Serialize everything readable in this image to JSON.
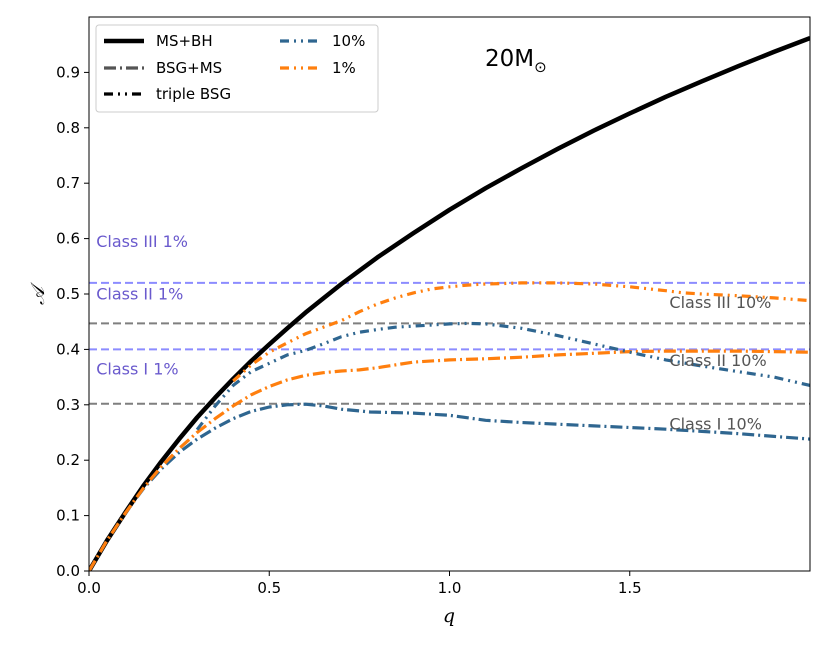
{
  "chart_data": {
    "type": "line",
    "title": "20M",
    "title_subscript": "⊙",
    "xlabel": "q",
    "ylabel": "𝒜",
    "xlim": [
      0,
      2
    ],
    "ylim": [
      0,
      1.0
    ],
    "xticks": [
      0.0,
      0.5,
      1.0,
      1.5
    ],
    "xtick_labels": [
      "0.0",
      "0.5",
      "1.0",
      "1.5"
    ],
    "yticks": [
      0.0,
      0.1,
      0.2,
      0.3,
      0.4,
      0.5,
      0.6,
      0.7,
      0.8,
      0.9
    ],
    "ytick_labels": [
      "0.0",
      "0.1",
      "0.2",
      "0.3",
      "0.4",
      "0.5",
      "0.6",
      "0.7",
      "0.8",
      "0.9"
    ],
    "colors": {
      "ms_bh": "#000000",
      "blue": "#2f6690",
      "orange": "#ff7f0e",
      "gray": "#7f7f7f",
      "purple_line": "#8c8cff",
      "purple_text": "#6a5acd",
      "gray_text": "#555555"
    },
    "legend": [
      {
        "label": "MS+BH",
        "style": "solid",
        "color": "#000000"
      },
      {
        "label": "BSG+MS",
        "style": "dashdot",
        "color": "#555555"
      },
      {
        "label": "triple BSG",
        "style": "dotted-dash",
        "color": "#000000"
      },
      {
        "label": "10%",
        "style": "dotted-dash",
        "color": "#2f6690"
      },
      {
        "label": "1%",
        "style": "dotted-dash",
        "color": "#ff7f0e"
      }
    ],
    "hlines": [
      {
        "y": 0.302,
        "color": "#7f7f7f",
        "label": "Class I 10%"
      },
      {
        "y": 0.447,
        "color": "#7f7f7f",
        "label": "Class II 10%"
      },
      {
        "y": 0.52,
        "color": "#8c8cff",
        "label": "Class III 1%"
      },
      {
        "y": 0.4,
        "color": "#8c8cff",
        "label": "Class I 1%"
      }
    ],
    "annotations": [
      {
        "text": "Class III 1%",
        "x": 0.02,
        "y": 0.585,
        "color": "#6a5acd"
      },
      {
        "text": "Class II 1%",
        "x": 0.02,
        "y": 0.49,
        "color": "#6a5acd"
      },
      {
        "text": "Class I 1%",
        "x": 0.02,
        "y": 0.355,
        "color": "#6a5acd"
      },
      {
        "text": "Class III 10%",
        "x": 1.61,
        "y": 0.475,
        "color": "#555555"
      },
      {
        "text": "Class II 10%",
        "x": 1.61,
        "y": 0.37,
        "color": "#555555"
      },
      {
        "text": "Class I 10%",
        "x": 1.61,
        "y": 0.255,
        "color": "#555555"
      }
    ],
    "series": [
      {
        "name": "MS+BH",
        "style": "solid",
        "color": "#000000",
        "x": [
          0,
          0.05,
          0.1,
          0.15,
          0.2,
          0.25,
          0.3,
          0.35,
          0.4,
          0.45,
          0.5,
          0.55,
          0.6,
          0.65,
          0.7,
          0.75,
          0.8,
          0.9,
          1.0,
          1.1,
          1.2,
          1.3,
          1.4,
          1.5,
          1.6,
          1.7,
          1.8,
          1.9,
          2.0
        ],
        "y": [
          0,
          0.055,
          0.105,
          0.153,
          0.197,
          0.238,
          0.277,
          0.313,
          0.347,
          0.379,
          0.409,
          0.438,
          0.466,
          0.492,
          0.518,
          0.542,
          0.566,
          0.61,
          0.652,
          0.691,
          0.727,
          0.762,
          0.795,
          0.826,
          0.856,
          0.884,
          0.911,
          0.937,
          0.962
        ]
      },
      {
        "name": "BSG+MS 10%",
        "style": "dashdot",
        "color": "#2f6690",
        "x": [
          0,
          0.05,
          0.1,
          0.15,
          0.2,
          0.25,
          0.3,
          0.35,
          0.4,
          0.45,
          0.5,
          0.55,
          0.6,
          0.65,
          0.7,
          0.75,
          0.78,
          0.9,
          1.0,
          1.1,
          1.2,
          1.3,
          1.4,
          1.5,
          1.6,
          1.7,
          1.8,
          1.9,
          2.0
        ],
        "y": [
          0,
          0.055,
          0.104,
          0.148,
          0.184,
          0.214,
          0.238,
          0.258,
          0.275,
          0.288,
          0.296,
          0.3,
          0.301,
          0.298,
          0.292,
          0.289,
          0.287,
          0.285,
          0.281,
          0.272,
          0.268,
          0.265,
          0.262,
          0.259,
          0.256,
          0.252,
          0.248,
          0.243,
          0.238
        ]
      },
      {
        "name": "BSG+MS 1%",
        "style": "dashdot",
        "color": "#ff7f0e",
        "x": [
          0,
          0.05,
          0.1,
          0.15,
          0.2,
          0.25,
          0.3,
          0.35,
          0.4,
          0.45,
          0.5,
          0.55,
          0.6,
          0.65,
          0.7,
          0.75,
          0.8,
          0.9,
          1.0,
          1.1,
          1.2,
          1.3,
          1.4,
          1.5,
          1.6,
          1.7,
          1.8,
          1.9,
          2.0
        ],
        "y": [
          0,
          0.055,
          0.104,
          0.149,
          0.188,
          0.221,
          0.25,
          0.275,
          0.298,
          0.318,
          0.333,
          0.345,
          0.353,
          0.358,
          0.361,
          0.363,
          0.367,
          0.377,
          0.381,
          0.383,
          0.386,
          0.39,
          0.393,
          0.396,
          0.397,
          0.397,
          0.397,
          0.396,
          0.395
        ]
      },
      {
        "name": "triple BSG 10%",
        "style": "dotted-dash",
        "color": "#2f6690",
        "x": [
          0.3,
          0.35,
          0.4,
          0.45,
          0.5,
          0.55,
          0.6,
          0.65,
          0.7,
          0.75,
          0.8,
          0.85,
          0.9,
          1.0,
          1.05,
          1.1,
          1.2,
          1.3,
          1.4,
          1.5,
          1.6,
          1.7,
          1.8,
          1.9,
          2.0
        ],
        "y": [
          0.255,
          0.298,
          0.335,
          0.36,
          0.375,
          0.39,
          0.398,
          0.41,
          0.423,
          0.431,
          0.436,
          0.44,
          0.442,
          0.446,
          0.447,
          0.446,
          0.438,
          0.425,
          0.41,
          0.395,
          0.381,
          0.37,
          0.36,
          0.35,
          0.335
        ]
      },
      {
        "name": "triple BSG 1%",
        "style": "dotted-dash",
        "color": "#ff7f0e",
        "x": [
          0.4,
          0.45,
          0.5,
          0.55,
          0.6,
          0.65,
          0.7,
          0.75,
          0.8,
          0.85,
          0.9,
          0.95,
          1.0,
          1.05,
          1.1,
          1.15,
          1.2,
          1.3,
          1.4,
          1.5,
          1.6,
          1.65,
          1.7,
          1.8,
          1.9,
          2.0
        ],
        "y": [
          0.343,
          0.372,
          0.395,
          0.412,
          0.428,
          0.44,
          0.452,
          0.468,
          0.482,
          0.493,
          0.502,
          0.509,
          0.513,
          0.516,
          0.518,
          0.519,
          0.52,
          0.52,
          0.518,
          0.513,
          0.506,
          0.502,
          0.5,
          0.497,
          0.493,
          0.488
        ]
      }
    ]
  }
}
